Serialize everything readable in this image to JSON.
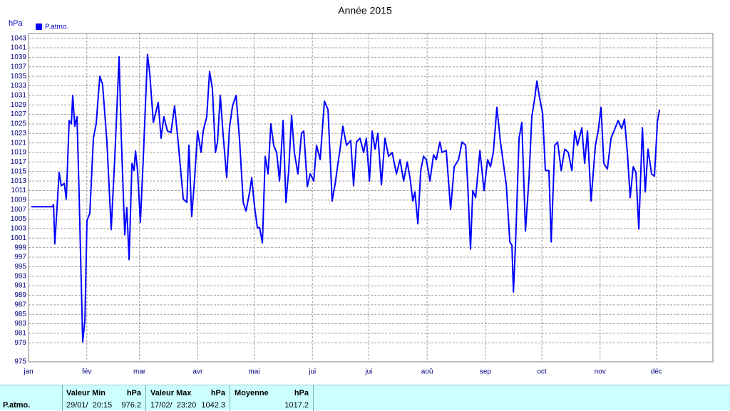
{
  "chart_data": {
    "type": "line",
    "title": "Année 2015",
    "y_label": "hPa",
    "x": [
      1.5,
      12.5,
      13.3,
      14.0,
      16.3,
      17.4,
      19.0,
      20.1,
      21.6,
      22.8,
      23.5,
      24.6,
      25.8,
      26.9,
      28.8,
      30.0,
      31.1,
      32.6,
      34.5,
      36.0,
      37.9,
      39.4,
      41.7,
      44.0,
      45.9,
      48.2,
      49.3,
      51.2,
      52.3,
      53.5,
      55.0,
      56.1,
      56.9,
      58.0,
      59.5,
      61.1,
      63.3,
      64.5,
      66.4,
      69.0,
      70.5,
      72.0,
      73.9,
      75.8,
      77.7,
      79.6,
      82.3,
      84.2,
      85.3,
      86.8,
      88.4,
      89.9,
      91.8,
      92.9,
      94.8,
      96.3,
      97.8,
      99.4,
      100.5,
      102.0,
      103.5,
      105.4,
      106.9,
      108.5,
      110.4,
      112.3,
      114.2,
      115.7,
      117.6,
      118.7,
      120.2,
      121.7,
      122.9,
      124.4,
      125.9,
      127.4,
      128.9,
      130.4,
      132.0,
      133.5,
      135.4,
      136.9,
      138.4,
      139.9,
      141.4,
      143.3,
      145.2,
      146.4,
      148.3,
      149.8,
      151.7,
      153.2,
      155.1,
      157.4,
      159.3,
      161.5,
      163.1,
      164.6,
      165.7,
      167.2,
      169.1,
      171.4,
      172.9,
      174.4,
      176.3,
      178.2,
      179.7,
      181.3,
      182.8,
      184.3,
      185.8,
      187.7,
      189.6,
      191.5,
      193.4,
      195.7,
      197.6,
      199.5,
      201.4,
      202.9,
      204.4,
      205.5,
      207.1,
      208.6,
      210.1,
      211.6,
      213.5,
      215.4,
      216.9,
      218.8,
      219.9,
      222.2,
      224.5,
      226.4,
      228.7,
      230.6,
      232.5,
      233.6,
      235.1,
      236.3,
      237.8,
      240.1,
      242.3,
      244.2,
      245.7,
      247.2,
      249.1,
      251.0,
      254.1,
      256.0,
      257.1,
      257.9,
      259.0,
      260.9,
      262.4,
      264.3,
      266.2,
      267.7,
      269.2,
      270.4,
      271.9,
      273.4,
      274.9,
      276.8,
      278.0,
      279.9,
      281.4,
      283.3,
      285.2,
      287.1,
      289.0,
      290.5,
      292.0,
      294.3,
      295.8,
      297.3,
      299.2,
      301.5,
      303.0,
      304.5,
      306.0,
      307.9,
      309.8,
      312.1,
      313.6,
      315.5,
      317.0,
      318.5,
      320.0,
      321.6,
      323.1,
      324.6,
      326.5,
      328.0,
      329.5,
      331.4,
      332.9,
      334.5,
      335.6
    ],
    "series": [
      {
        "name": "P.atmo.",
        "color": "#0000ff",
        "values": [
          1007.6,
          1007.6,
          1008,
          999.8,
          1014.8,
          1012,
          1012.5,
          1009.2,
          1025.7,
          1025,
          1031,
          1024.5,
          1026.5,
          1010.7,
          979.2,
          983.7,
          1004.7,
          1006.2,
          1022,
          1025,
          1035,
          1033.3,
          1021.2,
          1002.8,
          1018.2,
          1039.1,
          1022.7,
          1001.7,
          1007.4,
          996.5,
          1016.7,
          1015.2,
          1019.3,
          1015.2,
          1004.3,
          1018.2,
          1039.6,
          1035.5,
          1025.3,
          1029.5,
          1022,
          1026.5,
          1023.5,
          1023.2,
          1028.8,
          1021.2,
          1009.2,
          1008.5,
          1020.5,
          1005.5,
          1013.7,
          1023.5,
          1019,
          1023.5,
          1026.5,
          1036,
          1032.5,
          1019,
          1021.2,
          1031,
          1022.7,
          1013.7,
          1024.2,
          1028.8,
          1031,
          1021.2,
          1008.5,
          1006.7,
          1010.7,
          1013.7,
          1007.7,
          1003.2,
          1003.2,
          1000,
          1018.2,
          1014.5,
          1025,
          1020.5,
          1019,
          1013,
          1025.7,
          1008.5,
          1015.2,
          1026.8,
          1019,
          1014.5,
          1023,
          1023.5,
          1011.8,
          1014.5,
          1013,
          1020.5,
          1017.5,
          1029.8,
          1028,
          1008.8,
          1012.5,
          1016.7,
          1019.7,
          1024.5,
          1020.5,
          1021.5,
          1012,
          1021.2,
          1022,
          1019,
          1022,
          1013,
          1023.5,
          1019.7,
          1023,
          1012.2,
          1022,
          1018.2,
          1019,
          1014.5,
          1017.5,
          1013,
          1017,
          1013.7,
          1008.8,
          1010.7,
          1004,
          1015.2,
          1018.2,
          1017.5,
          1013,
          1018.5,
          1017.5,
          1021.2,
          1019,
          1019.4,
          1007,
          1016,
          1017.5,
          1021.2,
          1020.5,
          1012.2,
          998.7,
          1011,
          1009.5,
          1019.4,
          1011,
          1017.5,
          1016,
          1019,
          1028.5,
          1021.2,
          1012.2,
          1000.2,
          999.5,
          989.7,
          999.5,
          1022,
          1025.3,
          1002.5,
          1013.7,
          1026.5,
          1030.3,
          1034,
          1030.3,
          1027.3,
          1015.2,
          1015.2,
          1000.2,
          1020.5,
          1021.2,
          1015.2,
          1019.7,
          1019,
          1015.2,
          1023.5,
          1020.5,
          1024.2,
          1016.7,
          1023.5,
          1008.8,
          1020.5,
          1023.5,
          1028.5,
          1016.7,
          1015.5,
          1022,
          1024.2,
          1025.7,
          1024,
          1026,
          1019,
          1009.5,
          1016,
          1014.8,
          1002.9,
          1024.2,
          1010.7,
          1019.7,
          1014.5,
          1014,
          1025.5,
          1028
        ]
      }
    ],
    "xlim": [
      0,
      364
    ],
    "ylim": [
      975,
      1044
    ],
    "xticks": [
      {
        "value": 0,
        "label": "jan"
      },
      {
        "value": 31,
        "label": "fév"
      },
      {
        "value": 59,
        "label": "mar"
      },
      {
        "value": 90,
        "label": "avr"
      },
      {
        "value": 120,
        "label": "mai"
      },
      {
        "value": 151,
        "label": "jui"
      },
      {
        "value": 181,
        "label": "jui"
      },
      {
        "value": 212,
        "label": "aoû"
      },
      {
        "value": 243,
        "label": "sep"
      },
      {
        "value": 273,
        "label": "oct"
      },
      {
        "value": 304,
        "label": "nov"
      },
      {
        "value": 334,
        "label": "déc"
      }
    ],
    "yticks": [
      975,
      979,
      981,
      983,
      985,
      987,
      989,
      991,
      993,
      995,
      997,
      999,
      1001,
      1003,
      1005,
      1007,
      1009,
      1011,
      1013,
      1015,
      1017,
      1019,
      1021,
      1023,
      1025,
      1027,
      1029,
      1031,
      1033,
      1035,
      1037,
      1039,
      1041,
      1043
    ],
    "grid": true,
    "legend": "top-left"
  },
  "stats": {
    "row_label": "P.atmo.",
    "columns": [
      {
        "header": "Valeur Min",
        "unit": "hPa",
        "date": "29/01/  20:15",
        "value": 976.2
      },
      {
        "header": "Valeur Max",
        "unit": "hPa",
        "date": "17/02/  23:20",
        "value": 1042.3
      },
      {
        "header": "Moyenne",
        "unit": "hPa",
        "value": 1017.2
      }
    ]
  }
}
